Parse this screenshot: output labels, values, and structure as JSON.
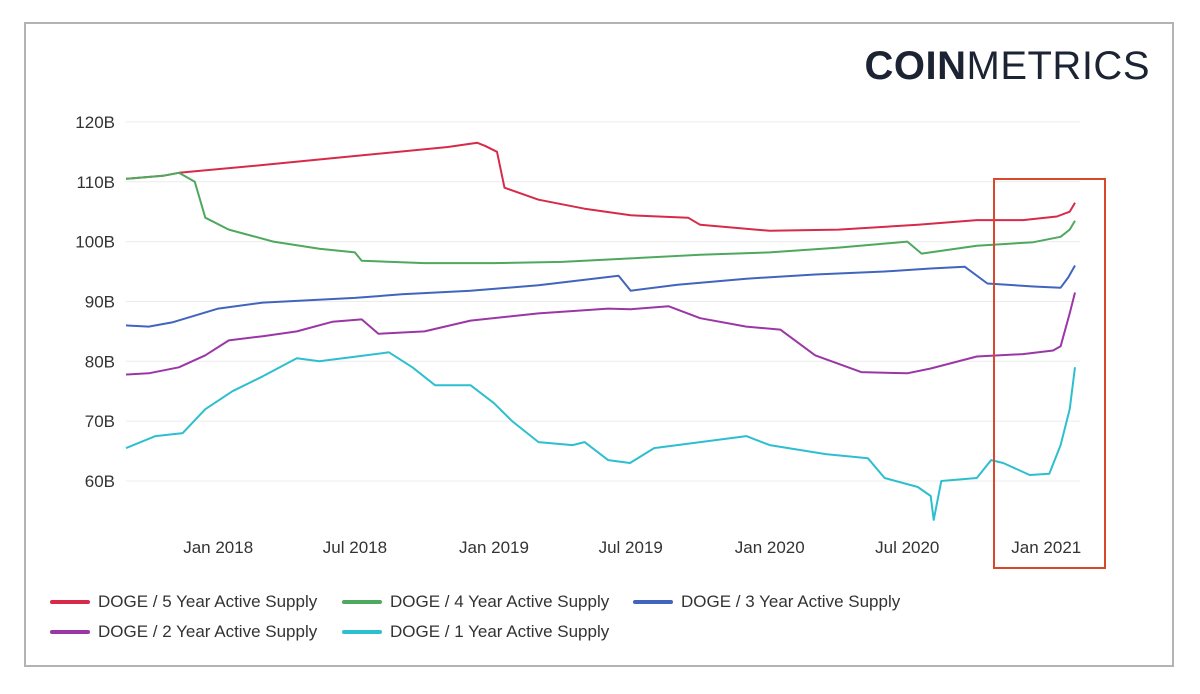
{
  "logo": {
    "bold": "COIN",
    "light": "METRICS"
  },
  "colors": {
    "five_year": "#d72a4a",
    "four_year": "#4ea85d",
    "three_year": "#4164be",
    "two_year": "#9b36a6",
    "one_year": "#2dbfcf",
    "highlight_box": "#d8482a"
  },
  "chart_data": {
    "type": "line",
    "y_ticks": [
      "120B",
      "110B",
      "100B",
      "90B",
      "80B",
      "70B",
      "60B"
    ],
    "x_ticks": [
      "Jan 2018",
      "Jul 2018",
      "Jan 2019",
      "Jul 2019",
      "Jan 2020",
      "Jul 2020",
      "Jan 2021"
    ],
    "ylim": [
      55,
      122
    ],
    "grid": true,
    "legend_position": "bottom",
    "series": [
      {
        "key": "five_year",
        "name": "DOGE / 5 Year Active Supply",
        "x": [
          "2017-09-01",
          "2017-10-20",
          "2017-11-10",
          "2018-03-01",
          "2018-07-01",
          "2018-11-01",
          "2018-12-10",
          "2018-12-20",
          "2019-01-05",
          "2019-01-15",
          "2019-03-01",
          "2019-05-01",
          "2019-07-01",
          "2019-09-15",
          "2019-10-01",
          "2020-01-01",
          "2020-04-01",
          "2020-07-15",
          "2020-10-01",
          "2020-12-01",
          "2021-01-15",
          "2021-02-01",
          "2021-02-08"
        ],
        "values": [
          110.5,
          111.0,
          111.5,
          112.8,
          114.3,
          115.8,
          116.5,
          116.0,
          115.0,
          109.0,
          107.0,
          105.5,
          104.4,
          104.0,
          102.8,
          101.8,
          102.0,
          102.8,
          103.6,
          103.6,
          104.2,
          105.0,
          106.5
        ]
      },
      {
        "key": "four_year",
        "name": "DOGE / 4 Year Active Supply",
        "x": [
          "2017-09-01",
          "2017-10-20",
          "2017-11-10",
          "2017-12-01",
          "2017-12-15",
          "2018-01-15",
          "2018-03-15",
          "2018-05-15",
          "2018-07-01",
          "2018-07-10",
          "2018-10-01",
          "2019-01-01",
          "2019-04-01",
          "2019-07-01",
          "2019-10-01",
          "2020-01-01",
          "2020-04-01",
          "2020-07-01",
          "2020-07-20",
          "2020-10-01",
          "2020-12-15",
          "2021-01-20",
          "2021-02-01",
          "2021-02-08"
        ],
        "values": [
          110.5,
          111.0,
          111.5,
          110.0,
          104.0,
          102.0,
          100.0,
          98.8,
          98.2,
          96.8,
          96.4,
          96.4,
          96.6,
          97.2,
          97.8,
          98.2,
          99.0,
          100.0,
          98.0,
          99.3,
          99.9,
          100.8,
          102.0,
          103.5
        ]
      },
      {
        "key": "three_year",
        "name": "DOGE / 3 Year Active Supply",
        "x": [
          "2017-09-01",
          "2017-10-01",
          "2017-11-01",
          "2018-01-01",
          "2018-03-01",
          "2018-05-01",
          "2018-07-01",
          "2018-09-01",
          "2018-12-01",
          "2019-03-01",
          "2019-06-15",
          "2019-07-01",
          "2019-09-01",
          "2019-12-01",
          "2020-03-01",
          "2020-06-01",
          "2020-08-01",
          "2020-09-15",
          "2020-10-15",
          "2020-12-15",
          "2021-01-20",
          "2021-01-30",
          "2021-02-08"
        ],
        "values": [
          86.0,
          85.8,
          86.5,
          88.8,
          89.8,
          90.2,
          90.6,
          91.2,
          91.8,
          92.7,
          94.3,
          91.8,
          92.8,
          93.8,
          94.5,
          95.0,
          95.5,
          95.8,
          93.0,
          92.5,
          92.3,
          94.0,
          96.0
        ]
      },
      {
        "key": "two_year",
        "name": "DOGE / 2 Year Active Supply",
        "x": [
          "2017-09-01",
          "2017-10-01",
          "2017-11-10",
          "2017-12-15",
          "2018-01-15",
          "2018-03-01",
          "2018-04-15",
          "2018-06-01",
          "2018-07-10",
          "2018-08-01",
          "2018-10-01",
          "2018-12-01",
          "2019-03-01",
          "2019-06-01",
          "2019-07-01",
          "2019-08-20",
          "2019-10-01",
          "2019-12-01",
          "2020-01-15",
          "2020-03-01",
          "2020-05-01",
          "2020-07-01",
          "2020-08-01",
          "2020-10-01",
          "2020-12-01",
          "2021-01-10",
          "2021-01-20",
          "2021-02-01",
          "2021-02-08"
        ],
        "values": [
          77.8,
          78.0,
          79.0,
          81.0,
          83.5,
          84.2,
          85.0,
          86.6,
          87.0,
          84.6,
          85.0,
          86.8,
          88.0,
          88.8,
          88.7,
          89.2,
          87.2,
          85.8,
          85.3,
          81.0,
          78.2,
          78.0,
          78.8,
          80.8,
          81.2,
          81.8,
          82.5,
          88.0,
          91.5
        ]
      },
      {
        "key": "one_year",
        "name": "DOGE / 1 Year Active Supply",
        "x": [
          "2017-09-01",
          "2017-10-10",
          "2017-11-15",
          "2017-12-15",
          "2018-01-20",
          "2018-03-01",
          "2018-04-15",
          "2018-05-15",
          "2018-06-15",
          "2018-08-15",
          "2018-09-15",
          "2018-10-15",
          "2018-12-01",
          "2019-01-01",
          "2019-01-25",
          "2019-03-01",
          "2019-04-15",
          "2019-05-01",
          "2019-06-01",
          "2019-06-30",
          "2019-08-01",
          "2019-10-01",
          "2019-12-01",
          "2020-01-01",
          "2020-03-15",
          "2020-05-10",
          "2020-06-01",
          "2020-07-15",
          "2020-08-01",
          "2020-08-05",
          "2020-08-15",
          "2020-10-01",
          "2020-10-20",
          "2020-11-05",
          "2020-12-10",
          "2021-01-05",
          "2021-01-20",
          "2021-02-01",
          "2021-02-08"
        ],
        "values": [
          65.5,
          67.5,
          68.0,
          72.0,
          75.0,
          77.5,
          80.5,
          80.0,
          80.5,
          81.5,
          79.0,
          76.0,
          76.0,
          73.0,
          70.0,
          66.5,
          66.0,
          66.5,
          63.5,
          63.0,
          65.5,
          66.5,
          67.5,
          66.0,
          64.5,
          63.8,
          60.5,
          59.0,
          57.5,
          53.5,
          60.0,
          60.5,
          63.5,
          63.0,
          61.0,
          61.2,
          66.0,
          72.0,
          79.0
        ]
      }
    ]
  },
  "legend_rows": [
    [
      "five_year",
      "four_year",
      "three_year"
    ],
    [
      "two_year",
      "one_year"
    ]
  ]
}
